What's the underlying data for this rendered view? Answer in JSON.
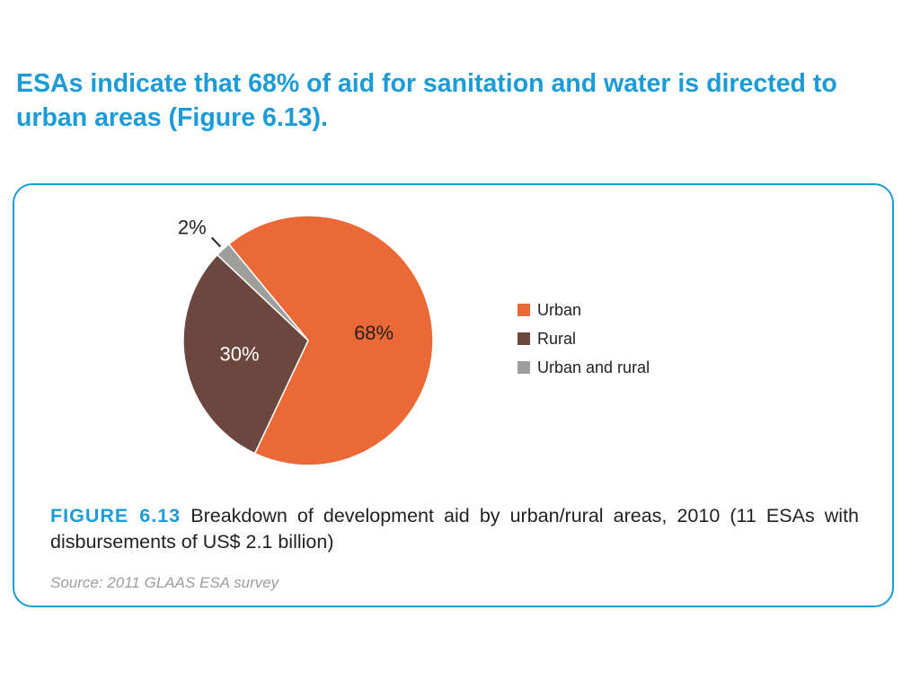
{
  "headline": "ESAs indicate that 68% of aid for sanitation and water is directed to urban areas (Figure 6.13).",
  "figure": {
    "number": "FIGURE 6.13",
    "caption": "Breakdown of development aid by urban/rural areas, 2010 (11 ESAs with disbursements of US$ 2.1 billion)",
    "source": "Source: 2011 GLAAS ESA survey"
  },
  "chart_data": {
    "type": "pie",
    "title": "",
    "categories": [
      "Urban",
      "Rural",
      "Urban and rural"
    ],
    "values": [
      68,
      30,
      2
    ],
    "value_labels": [
      "68%",
      "30%",
      "2%"
    ],
    "colors": [
      "#ea6936",
      "#6b473e",
      "#9e9e9c"
    ],
    "legend": {
      "position": "right",
      "entries": [
        "Urban",
        "Rural",
        "Urban and rural"
      ]
    }
  }
}
